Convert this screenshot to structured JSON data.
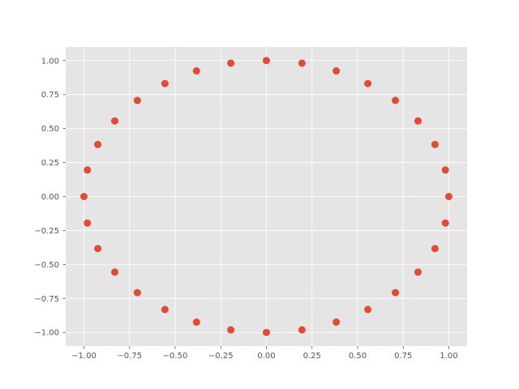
{
  "chart_data": {
    "type": "scatter",
    "title": "",
    "xlabel": "",
    "ylabel": "",
    "xlim": [
      -1.1,
      1.1
    ],
    "ylim": [
      -1.1,
      1.1
    ],
    "grid": true,
    "legend": "none",
    "x_ticks": [
      -1.0,
      -0.75,
      -0.5,
      -0.25,
      0.0,
      0.25,
      0.5,
      0.75,
      1.0
    ],
    "y_ticks": [
      -1.0,
      -0.75,
      -0.5,
      -0.25,
      0.0,
      0.25,
      0.5,
      0.75,
      1.0
    ],
    "x_tick_labels": [
      "−1.00",
      "−0.75",
      "−0.50",
      "−0.25",
      "0.00",
      "0.25",
      "0.50",
      "0.75",
      "1.00"
    ],
    "y_tick_labels": [
      "−1.00",
      "−0.75",
      "−0.50",
      "−0.25",
      "0.00",
      "0.25",
      "0.50",
      "0.75",
      "1.00"
    ],
    "colors": {
      "marker": "#E24A33",
      "axes_background": "#E5E5E5",
      "grid": "#FFFFFF",
      "tick_text": "#555555"
    },
    "series": [
      {
        "x": [
          1.0,
          0.981,
          0.924,
          0.831,
          0.707,
          0.556,
          0.383,
          0.195,
          0.0,
          -0.195,
          -0.383,
          -0.556,
          -0.707,
          -0.831,
          -0.924,
          -0.981,
          -1.0,
          -0.981,
          -0.924,
          -0.831,
          -0.707,
          -0.556,
          -0.383,
          -0.195,
          0.0,
          0.195,
          0.383,
          0.556,
          0.707,
          0.831,
          0.924,
          0.981
        ],
        "y": [
          0.0,
          0.195,
          0.383,
          0.556,
          0.707,
          0.831,
          0.924,
          0.981,
          1.0,
          0.981,
          0.924,
          0.831,
          0.707,
          0.556,
          0.383,
          0.195,
          0.0,
          -0.195,
          -0.383,
          -0.556,
          -0.707,
          -0.831,
          -0.924,
          -0.981,
          -1.0,
          -0.981,
          -0.924,
          -0.831,
          -0.707,
          -0.556,
          -0.383,
          -0.195
        ]
      }
    ]
  }
}
